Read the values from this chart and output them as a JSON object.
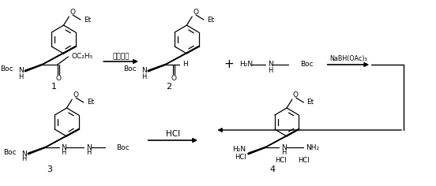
{
  "bg_color": "#ffffff",
  "fig_width": 5.52,
  "fig_height": 2.36,
  "dpi": 100,
  "reagent1": "红铝试剂",
  "reagent2": "NaBH(OAc)₃",
  "reagent3": "HCl",
  "label1": "1",
  "label2": "2",
  "label3": "3",
  "label4": "4",
  "boc": "Boc",
  "plus": "+",
  "H2N": "H₂N",
  "NH2": "NH₂",
  "OC2H5": "OC₂H₅"
}
